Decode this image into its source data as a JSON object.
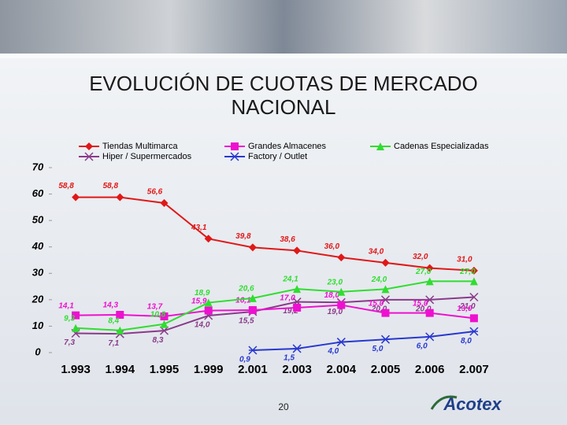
{
  "chart_data": {
    "type": "line",
    "title": "EVOLUCIÓN DE CUOTAS DE MERCADO NACIONAL",
    "categories": [
      "1.993",
      "1.994",
      "1.995",
      "1.999",
      "2.001",
      "2.003",
      "2.004",
      "2.005",
      "2.006",
      "2.007"
    ],
    "series": [
      {
        "name": "Tiendas Multimarca",
        "color": "#e01818",
        "marker": "diamond",
        "values": [
          58.8,
          58.8,
          56.6,
          43.1,
          39.8,
          38.6,
          36.0,
          34.0,
          32.0,
          31.0
        ],
        "value_labels": [
          "58,8",
          "58,8",
          "56,6",
          "43,1",
          "39,8",
          "38,6",
          "36,0",
          "34,0",
          "32,0",
          "31,0"
        ]
      },
      {
        "name": "Hiper / Supermercados",
        "color": "#8a3a8a",
        "marker": "x",
        "values": [
          7.3,
          7.1,
          8.3,
          14.0,
          15.5,
          19.2,
          19.0,
          20.0,
          20.0,
          21.0
        ],
        "value_labels": [
          "7,3",
          "7,1",
          "8,3",
          "14,0",
          "15,5",
          "19,2",
          "19,0",
          "20,0",
          "20,0",
          "21,0"
        ]
      },
      {
        "name": "Grandes Almacenes",
        "color": "#ee10d0",
        "marker": "square",
        "values": [
          14.1,
          14.3,
          13.7,
          15.9,
          16.1,
          17.0,
          18.0,
          15.0,
          15.0,
          13.0
        ],
        "value_labels": [
          "14,1",
          "14,3",
          "13,7",
          "15,9",
          "16,1",
          "17,0",
          "18,0",
          "15,0",
          "15,0",
          "13,0"
        ]
      },
      {
        "name": "Factory / Outlet",
        "color": "#2838d0",
        "marker": "star",
        "values": [
          null,
          null,
          null,
          null,
          0.9,
          1.5,
          4.0,
          5.0,
          6.0,
          8.0
        ],
        "value_labels": [
          null,
          null,
          null,
          null,
          "0,9",
          "1,5",
          "4,0",
          "5,0",
          "6,0",
          "8,0"
        ]
      },
      {
        "name": "Cadenas Especializadas",
        "color": "#30dd30",
        "marker": "triangle",
        "values": [
          9.3,
          8.4,
          10.8,
          18.9,
          20.6,
          24.1,
          23.0,
          24.0,
          27.0,
          27.0
        ],
        "value_labels": [
          "9,3",
          "8,4",
          "10,8",
          "18,9",
          "20,6",
          "24,1",
          "23,0",
          "24,0",
          "27,0",
          "27,0"
        ]
      }
    ],
    "ylim": [
      0,
      70
    ],
    "yticks": [
      0,
      10,
      20,
      30,
      40,
      50,
      60,
      70
    ],
    "grid": false
  },
  "slide": {
    "page_number": "20",
    "logo": "Acotex"
  }
}
